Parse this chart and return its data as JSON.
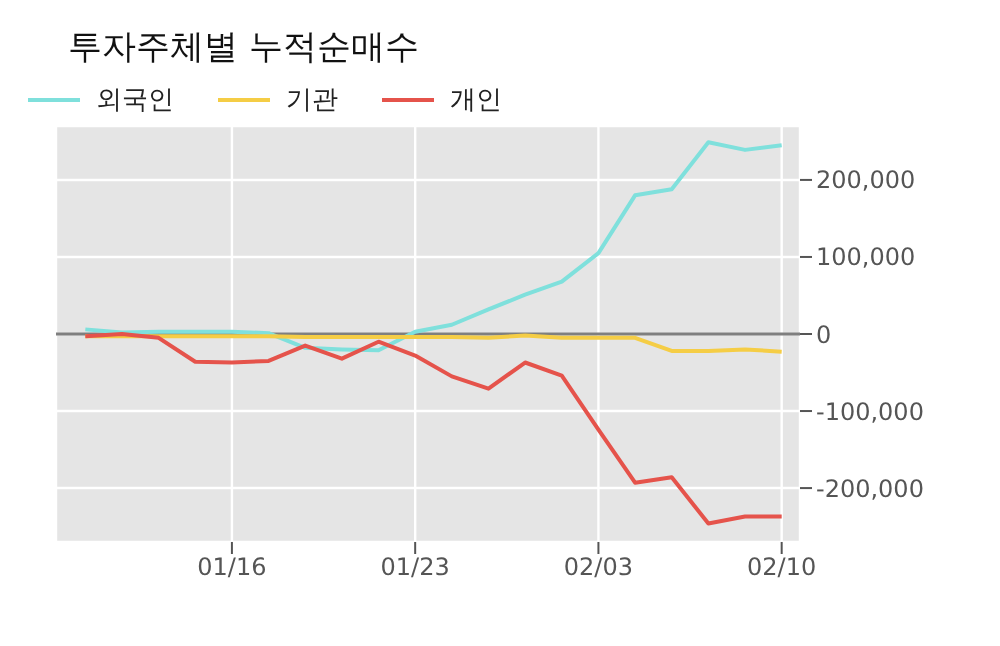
{
  "chart_data": {
    "type": "line",
    "title": "투자주체별 누적순매수",
    "categories": [
      null,
      null,
      null,
      null,
      "01/16",
      null,
      null,
      null,
      null,
      "01/23",
      null,
      null,
      null,
      null,
      "02/03",
      null,
      null,
      null,
      null,
      "02/10"
    ],
    "series": [
      {
        "name": "외국인",
        "color": "#7fe0dc",
        "values": [
          6000,
          2000,
          3000,
          3000,
          3000,
          1000,
          -18000,
          -20000,
          -21000,
          3000,
          12000,
          32000,
          51000,
          68000,
          105000,
          180000,
          188000,
          249000,
          239000,
          245000
        ]
      },
      {
        "name": "기관",
        "color": "#f5cd45",
        "values": [
          -3000,
          -3000,
          -3000,
          -3000,
          -3000,
          -3000,
          -4000,
          -4000,
          -4000,
          -4000,
          -4000,
          -5000,
          -2000,
          -5000,
          -5000,
          -5000,
          -22000,
          -22000,
          -20000,
          -23000
        ]
      },
      {
        "name": "개인",
        "color": "#e5534b",
        "values": [
          -3000,
          0,
          -5000,
          -36000,
          -37000,
          -35000,
          -15000,
          -32000,
          -10000,
          -28000,
          -55000,
          -71000,
          -37000,
          -54000,
          -124000,
          -193000,
          -186000,
          -246000,
          -237000,
          -237000
        ]
      }
    ],
    "ylim": [
      -270000,
      270000
    ],
    "yticks": [
      {
        "value": -200000,
        "label": "-200,000"
      },
      {
        "value": -100000,
        "label": "-100,000"
      },
      0,
      {
        "value": 100000,
        "label": "100,000"
      },
      {
        "value": 200000,
        "label": "200,000"
      }
    ],
    "ref_lines": [
      {
        "axis": "y",
        "value": 0,
        "color": "#7f7f7f"
      }
    ],
    "grid": true,
    "legend": "top left",
    "line_style": "solid",
    "marker": "none"
  }
}
